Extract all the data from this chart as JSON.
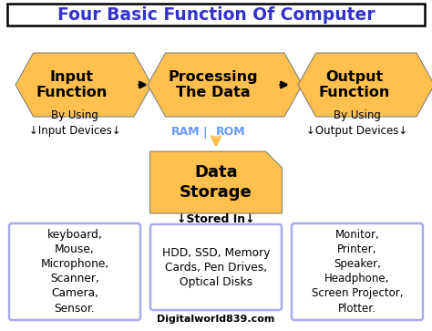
{
  "title": "Four Basic Function Of Computer",
  "title_color": "#3333cc",
  "title_fontsize": 13.5,
  "bg_color": "#ffffff",
  "arrow_fill": "#FFC04D",
  "connector_color": "#000000",
  "ram_rom_color": "#6699ff",
  "box_border_color": "#aaaaee",
  "left_box_text": "keyboard,\nMouse,\nMicrophone,\nScanner,\nCamera,\nSensor.",
  "center_box_text": "HDD, SSD, Memory\nCards, Pen Drives,\nOptical Disks",
  "right_box_text": "Monitor,\nPrinter,\nSpeaker,\nHeadphone,\nScreen Projector,\nPlotter.",
  "watermark": "Digitalworld839.com",
  "watermark_color": "#000000",
  "sublabel_left": "By Using\n↓Input Devices↓",
  "sublabel_right": "By Using\n↓Output Devices↓",
  "stored_in": "↓Stored In↓",
  "data_storage_text": "Data\nStorage"
}
